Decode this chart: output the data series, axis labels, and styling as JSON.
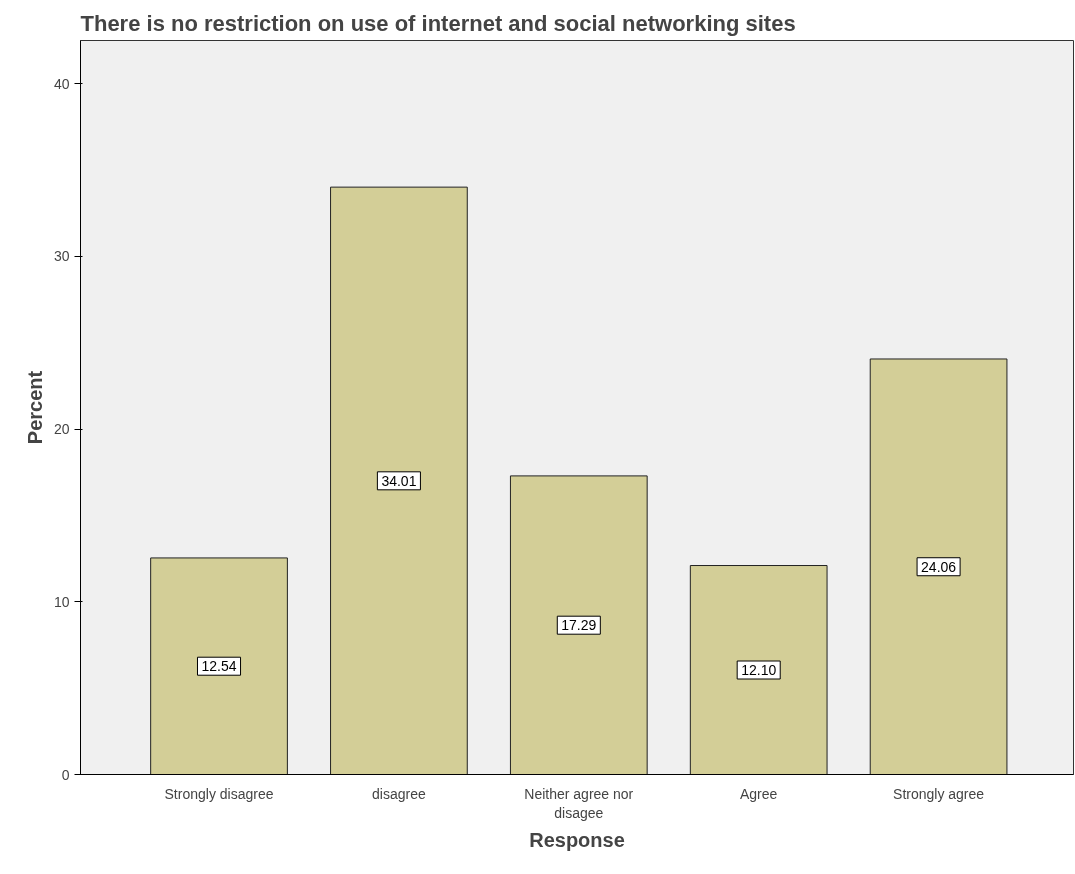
{
  "chart_data": {
    "type": "bar",
    "title": "There is no restriction on use of internet and social networking sites",
    "xlabel": "Response",
    "ylabel": "Percent",
    "categories": [
      "Strongly disagree",
      "disagree",
      "Neither agree nor disagee",
      "Agree",
      "Strongly agree"
    ],
    "values": [
      12.54,
      34.01,
      17.29,
      12.1,
      24.06
    ],
    "color": "#d3ce97",
    "value_labels": [
      "12.54",
      "34.01",
      "17.29",
      "12.10",
      "24.06"
    ],
    "ylim": [
      0,
      42.5
    ],
    "yticks": [
      0,
      10,
      20,
      30,
      40
    ],
    "grid": false
  }
}
